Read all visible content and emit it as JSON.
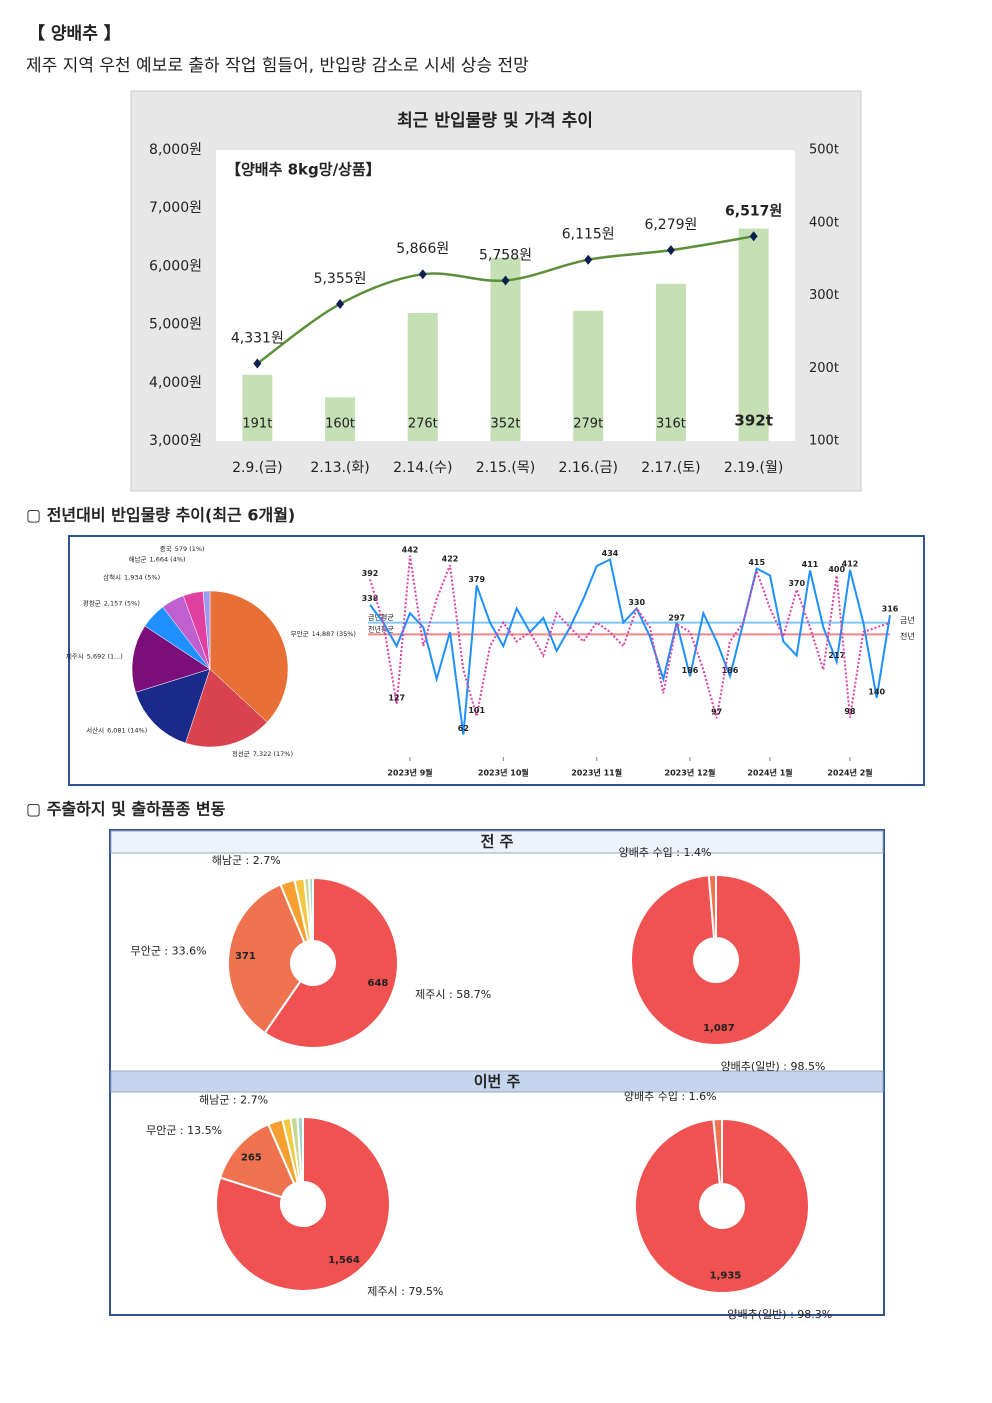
{
  "header": {
    "title": "【 양배추 】",
    "subtitle": "제주 지역 우천 예보로 출하 작업 힘들어, 반입량 감소로 시세 상승 전망"
  },
  "sections": [
    {
      "heading": "▢ 전년대비 반입물량 추이(최근 6개월)"
    },
    {
      "heading": "▢ 주출하지 및 출하품종 변동",
      "panels": [
        "전 주",
        "이번 주"
      ]
    }
  ],
  "chart_data": [
    {
      "type": "combo",
      "title": "최근 반입물량 및 가격 추이",
      "subtitle": "【양배추 8kg망/상품】",
      "categories": [
        "2.9.(금)",
        "2.13.(화)",
        "2.14.(수)",
        "2.15.(목)",
        "2.16.(금)",
        "2.17.(토)",
        "2.19.(월)"
      ],
      "highlight_index": 6,
      "series": [
        {
          "type": "bar",
          "axis": "y2",
          "color": "#c5e0b4",
          "values": [
            191,
            160,
            276,
            352,
            279,
            316,
            392
          ],
          "value_labels": [
            "191t",
            "160t",
            "276t",
            "352t",
            "279t",
            "316t",
            "392t"
          ]
        },
        {
          "type": "line",
          "color": "#5b8f3a",
          "marker_color": "#0d1f4f",
          "values": [
            4331,
            5355,
            5866,
            5758,
            6115,
            6279,
            6517
          ],
          "value_labels": [
            "4,331원",
            "5,355원",
            "5,866원",
            "5,758원",
            "6,115원",
            "6,279원",
            "6,517원"
          ]
        }
      ],
      "ylim": [
        3000,
        8000
      ],
      "yticks": [
        {
          "value": 3000,
          "label": "3,000원"
        },
        {
          "value": 4000,
          "label": "4,000원"
        },
        {
          "value": 5000,
          "label": "5,000원"
        },
        {
          "value": 6000,
          "label": "6,000원"
        },
        {
          "value": 7000,
          "label": "7,000원"
        },
        {
          "value": 8000,
          "label": "8,000원"
        }
      ],
      "y2lim": [
        100,
        500
      ],
      "y2ticks": [
        {
          "value": 100,
          "label": "100t"
        },
        {
          "value": 200,
          "label": "200t"
        },
        {
          "value": 300,
          "label": "300t"
        },
        {
          "value": 400,
          "label": "400t"
        },
        {
          "value": 500,
          "label": "500t"
        }
      ]
    },
    {
      "type": "pie",
      "categories": [
        "무안군",
        "정선군",
        "서산시",
        "제주시",
        "평창군",
        "삼척시",
        "해남군",
        "중국"
      ],
      "values": [
        14887,
        7322,
        6081,
        5692,
        2157,
        1934,
        1664,
        579
      ],
      "value_labels": [
        "14,887 (35%)",
        "7,322 (17%)",
        "6,081 (14%)",
        "5,692 (1...)",
        "2,157 (5%)",
        "1,934 (5%)",
        "1,664 (4%)",
        "579 (1%)"
      ],
      "colors": [
        "#e86f35",
        "#d9434f",
        "#1a2a8a",
        "#7b0e78",
        "#1e90ff",
        "#c060d0",
        "#e040a0",
        "#9b9bf0"
      ]
    },
    {
      "type": "line",
      "xlim": [
        0,
        39
      ],
      "ylim": [
        40,
        450
      ],
      "xticks": [
        {
          "value": 3,
          "label": "2023년 9월"
        },
        {
          "value": 10,
          "label": "2023년 10월"
        },
        {
          "value": 17,
          "label": "2023년 11월"
        },
        {
          "value": 24,
          "label": "2023년 12월"
        },
        {
          "value": 30,
          "label": "2024년 1월"
        },
        {
          "value": 36,
          "label": "2024년 2월"
        }
      ],
      "series": [
        {
          "name": "금년",
          "color": "#1e90ff",
          "values": [
            338,
            300,
            250,
            320,
            290,
            180,
            280,
            62,
            379,
            300,
            250,
            330,
            280,
            310,
            240,
            290,
            350,
            420,
            434,
            300,
            330,
            270,
            180,
            300,
            186,
            320,
            260,
            186,
            300,
            415,
            400,
            260,
            230,
            411,
            290,
            217,
            412,
            300,
            140,
            316
          ],
          "value_labels": [
            "338",
            null,
            null,
            null,
            null,
            null,
            null,
            "62",
            "379",
            null,
            null,
            null,
            null,
            null,
            null,
            null,
            null,
            null,
            "434",
            null,
            null,
            null,
            null,
            null,
            "186",
            null,
            null,
            "186",
            null,
            "415",
            null,
            null,
            null,
            "411",
            null,
            "217",
            "412",
            null,
            "140",
            "316"
          ]
        },
        {
          "name": "전년",
          "color": "#e040a0",
          "dashed": true,
          "values": [
            392,
            300,
            127,
            442,
            250,
            350,
            422,
            200,
            101,
            250,
            300,
            260,
            280,
            230,
            320,
            290,
            260,
            300,
            280,
            250,
            330,
            290,
            150,
            297,
            280,
            200,
            97,
            260,
            300,
            410,
            330,
            270,
            370,
            290,
            200,
            400,
            98,
            280,
            290,
            300
          ],
          "value_labels": [
            "392",
            null,
            "127",
            "442",
            null,
            null,
            "422",
            null,
            "101",
            null,
            null,
            null,
            null,
            null,
            null,
            null,
            null,
            null,
            null,
            null,
            "330",
            null,
            null,
            "297",
            null,
            null,
            "97",
            null,
            null,
            null,
            null,
            null,
            "370",
            null,
            null,
            "400",
            "98",
            null,
            null,
            null
          ]
        }
      ],
      "averages": [
        {
          "label": "금년평균",
          "value": 300,
          "color": "#7fc8f8"
        },
        {
          "label": "전년평균",
          "value": 275,
          "color": "#ee8888"
        }
      ]
    },
    {
      "type": "donut",
      "slices": [
        {
          "value": 648,
          "value_label": "648",
          "label": "제주시 : 58.7%",
          "color": "#f05252"
        },
        {
          "value": 371,
          "value_label": "371",
          "label": "무안군 : 33.6%",
          "color": "#f07350"
        },
        {
          "value": 30,
          "label": "해남군 : 2.7%",
          "color": "#f5a030"
        },
        {
          "value": 20,
          "color": "#f5c842"
        },
        {
          "value": 10,
          "color": "#c8d890"
        },
        {
          "value": 8,
          "color": "#9fd8c8"
        }
      ]
    },
    {
      "type": "donut",
      "slices": [
        {
          "value": 1087,
          "value_label": "1,087",
          "label": "양배추(일반) : 98.5%",
          "color": "#f05252"
        },
        {
          "value": 15,
          "label": "양배추 수입 : 1.4%",
          "color": "#f07350"
        }
      ]
    },
    {
      "type": "donut",
      "slices": [
        {
          "value": 1564,
          "value_label": "1,564",
          "label": "제주시 : 79.5%",
          "color": "#f05252"
        },
        {
          "value": 265,
          "value_label": "265",
          "label": "무안군 : 13.5%",
          "color": "#f07350"
        },
        {
          "value": 53,
          "label": "해남군 : 2.7%",
          "color": "#f5a030"
        },
        {
          "value": 30,
          "color": "#f5c842"
        },
        {
          "value": 25,
          "color": "#c8d890"
        },
        {
          "value": 20,
          "color": "#9fd8c8"
        }
      ]
    },
    {
      "type": "donut",
      "slices": [
        {
          "value": 1935,
          "value_label": "1,935",
          "label": "양배추(일반) : 98.3%",
          "color": "#f05252"
        },
        {
          "value": 31,
          "label": "양배추 수입 : 1.6%",
          "color": "#f07350"
        }
      ]
    }
  ]
}
